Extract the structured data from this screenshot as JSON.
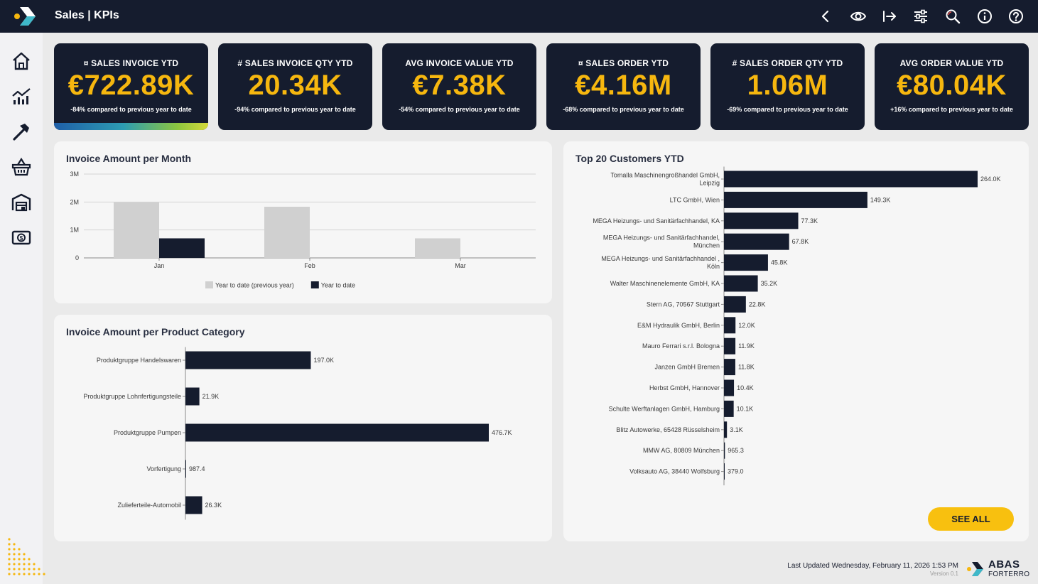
{
  "app": {
    "title": "Sales | KPIs"
  },
  "toolbar": {
    "icons": [
      "back-icon",
      "eye-icon",
      "export-icon",
      "filter-sliders-icon",
      "search-icon",
      "info-icon",
      "help-icon"
    ]
  },
  "sidebar": {
    "items": [
      "home-icon",
      "analytics-icon",
      "tools-icon",
      "basket-icon",
      "warehouse-icon",
      "money-icon"
    ]
  },
  "kpis": [
    {
      "title": "¤ SALES INVOICE YTD",
      "value": "€722.89K",
      "compare": "-84% compared to previous year to date"
    },
    {
      "title": "# SALES INVOICE QTY YTD",
      "value": "20.34K",
      "compare": "-94% compared to previous year to date"
    },
    {
      "title": "AVG INVOICE VALUE YTD",
      "value": "€7.38K",
      "compare": "-54% compared to previous year to date"
    },
    {
      "title": "¤ SALES ORDER YTD",
      "value": "€4.16M",
      "compare": "-68% compared to previous year to date"
    },
    {
      "title": "# SALES ORDER QTY YTD",
      "value": "1.06M",
      "compare": "-69% compared to previous year to date"
    },
    {
      "title": "AVG ORDER VALUE YTD",
      "value": "€80.04K",
      "compare": "+16% compared to previous year to date"
    }
  ],
  "colors": {
    "navy": "#151c2e",
    "accent": "#f6b70f",
    "grey_bar": "#d0d0d0",
    "card": "#f6f6f6"
  },
  "chart_data": [
    {
      "id": "month",
      "type": "bar",
      "title": "Invoice Amount per Month",
      "categories": [
        "Jan",
        "Feb",
        "Mar"
      ],
      "series": [
        {
          "name": "Year to date (previous year)",
          "values": [
            1990000,
            1830000,
            700000
          ],
          "color": "#d0d0d0"
        },
        {
          "name": "Year to date",
          "values": [
            700000,
            0,
            0
          ],
          "color": "#151c2e"
        }
      ],
      "yticks": [
        "0",
        "1M",
        "2M",
        "3M"
      ],
      "ylim": [
        0,
        3000000
      ],
      "legend": "bottom-center"
    },
    {
      "id": "category",
      "type": "bar-horizontal",
      "title": "Invoice Amount per Product Category",
      "categories": [
        "Produktgruppe Handelswaren",
        "Produktgruppe Lohnfertigungsteile",
        "Produktgruppe Pumpen",
        "Vorfertigung",
        "Zulieferteile-Automobil"
      ],
      "values": [
        197000,
        21900,
        476700,
        987.4,
        26300
      ],
      "labels": [
        "197.0K",
        "21.9K",
        "476.7K",
        "987.4",
        "26.3K"
      ],
      "xlim": [
        0,
        476700
      ]
    },
    {
      "id": "customers",
      "type": "bar-horizontal",
      "title": "Top 20 Customers YTD",
      "categories": [
        [
          "Tomalla Maschinengroßhandel GmbH,",
          "Leipzig"
        ],
        [
          "LTC GmbH, Wien"
        ],
        [
          "MEGA Heizungs- und Sanitärfachhandel, KA"
        ],
        [
          "MEGA Heizungs- und Sanitärfachhandel,",
          "München"
        ],
        [
          "MEGA Heizungs- und Sanitärfachhandel ,",
          "Köln"
        ],
        [
          "Walter Maschinenelemente GmbH, KA"
        ],
        [
          "Stern AG, 70567 Stuttgart"
        ],
        [
          "E&M Hydraulik GmbH, Berlin"
        ],
        [
          "Mauro Ferrari s.r.l. Bologna"
        ],
        [
          "Janzen GmbH Bremen"
        ],
        [
          "Herbst GmbH, Hannover"
        ],
        [
          "Schulte Werftanlagen GmbH, Hamburg"
        ],
        [
          "Blitz Autowerke, 65428 Rüsselsheim"
        ],
        [
          "MMW AG, 80809 München"
        ],
        [
          "Volksauto AG, 38440 Wolfsburg"
        ]
      ],
      "values": [
        264000,
        149300,
        77300,
        67800,
        45800,
        35200,
        22800,
        12000,
        11900,
        11800,
        10400,
        10100,
        3100,
        965.3,
        379.0
      ],
      "labels": [
        "264.0K",
        "149.3K",
        "77.3K",
        "67.8K",
        "45.8K",
        "35.2K",
        "22.8K",
        "12.0K",
        "11.9K",
        "11.8K",
        "10.4K",
        "10.1K",
        "3.1K",
        "965.3",
        "379.0"
      ],
      "xlim": [
        0,
        264000
      ]
    }
  ],
  "see_all": "SEE ALL",
  "footer": {
    "updated": "Last Updated Wednesday, February 11, 2026 1:53 PM",
    "version": "Version 0.1",
    "brand": "ABAS",
    "brand_sub": "FORTERRO"
  }
}
